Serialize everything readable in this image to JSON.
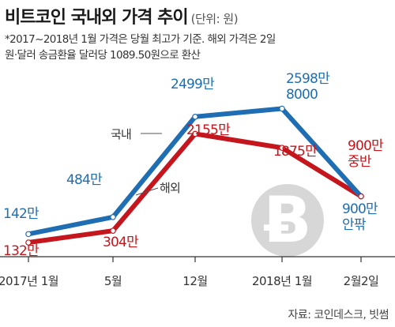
{
  "title": "비트코인 국내외 가격 추이",
  "unit_note": "(단위: 원)",
  "notes": [
    "*2017~2018년 1월 가격은 당월 최고가 기준. 해외 가격은 2일",
    "원·달러 송금환율 달러당 1089.50원으로 환산"
  ],
  "source": "자료: 코인데스크, 빗썸",
  "colors": {
    "domestic": "#1f6db3",
    "overseas": "#c4161c",
    "axis": "#333333",
    "coin": "#d7d7d7"
  },
  "coin_icon": "bitcoin-icon",
  "chart_data": {
    "type": "line",
    "categories": [
      "2017년 1월",
      "5월",
      "12월",
      "2018년 1월",
      "2월2일"
    ],
    "series": [
      {
        "name": "국내",
        "values": [
          142,
          484,
          2499,
          2598.8,
          900
        ],
        "labels": [
          "142만",
          "484만",
          "2499만",
          "2598만\n8000",
          "900만\n안팎"
        ]
      },
      {
        "name": "해외",
        "values": [
          132,
          304,
          2155,
          1875,
          900
        ],
        "labels": [
          "132만",
          "304만",
          "2155만",
          "1875만",
          "900만\n중반"
        ]
      }
    ],
    "title": "비트코인 국내외 가격 추이",
    "ylabel": "",
    "unit": "(단위: 원)",
    "ylim": [
      0,
      3000
    ],
    "grid": false,
    "legend": "inline"
  }
}
